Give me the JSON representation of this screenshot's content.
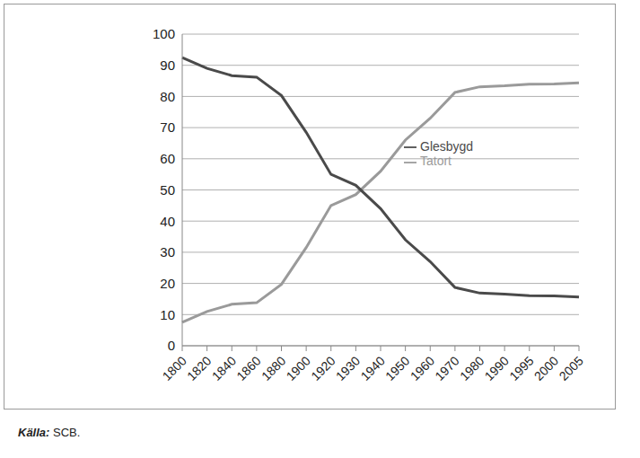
{
  "chart_data": {
    "type": "line",
    "categories": [
      "1800",
      "1820",
      "1840",
      "1860",
      "1880",
      "1900",
      "1920",
      "1930",
      "1940",
      "1950",
      "1960",
      "1970",
      "1980",
      "1990",
      "1995",
      "2000",
      "2005"
    ],
    "series": [
      {
        "name": "Tatort",
        "color": "#9a9a9a",
        "values": [
          7.5,
          11,
          13.3,
          13.8,
          19.7,
          31.5,
          45,
          48.5,
          56,
          66,
          73,
          81.3,
          83.1,
          83.4,
          83.9,
          84,
          84.4
        ]
      },
      {
        "name": "Glesbygd",
        "color": "#4a4a4a",
        "values": [
          92.5,
          89,
          86.7,
          86.2,
          80.3,
          68.5,
          55,
          51.5,
          44,
          34,
          27,
          18.7,
          16.9,
          16.6,
          16.1,
          16,
          15.6
        ]
      }
    ],
    "ylim": [
      0,
      100
    ],
    "yticks": [
      0,
      10,
      20,
      30,
      40,
      50,
      60,
      70,
      80,
      90,
      100
    ],
    "grid": true,
    "legend": "right",
    "source": "Källa: SCB."
  }
}
